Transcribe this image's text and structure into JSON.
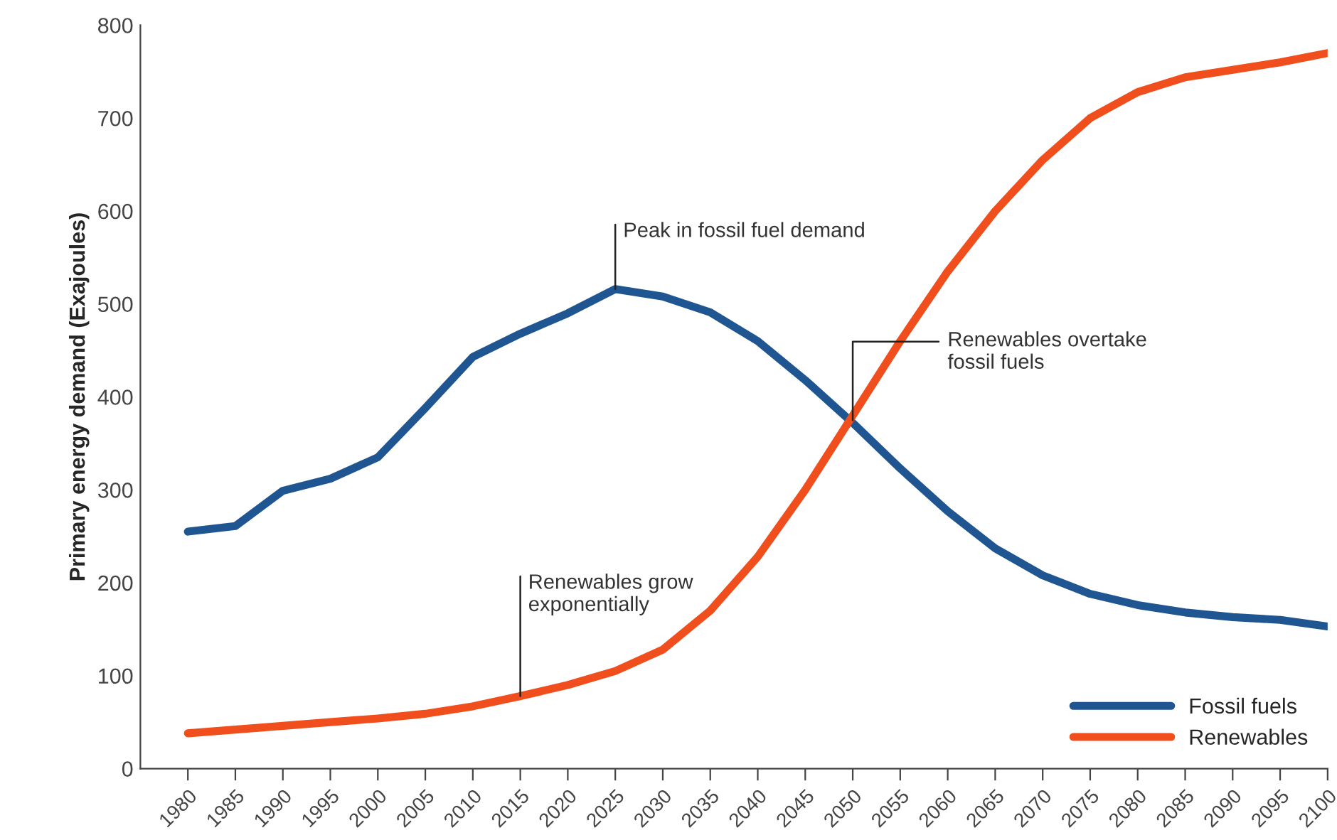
{
  "chart_data": {
    "type": "line",
    "ylabel": "Primary energy demand (Exajoules)",
    "x": [
      1980,
      1985,
      1990,
      1995,
      2000,
      2005,
      2010,
      2015,
      2020,
      2025,
      2030,
      2035,
      2040,
      2045,
      2050,
      2055,
      2060,
      2065,
      2070,
      2075,
      2080,
      2085,
      2090,
      2095,
      2100
    ],
    "series": [
      {
        "name": "Fossil fuels",
        "color": "#1f5591",
        "values": [
          255,
          261,
          299,
          312,
          335,
          388,
          443,
          468,
          490,
          516,
          508,
          491,
          460,
          418,
          372,
          323,
          277,
          237,
          208,
          188,
          176,
          168,
          163,
          160,
          153
        ]
      },
      {
        "name": "Renewables",
        "color": "#f04e1c",
        "values": [
          38,
          42,
          46,
          50,
          54,
          59,
          67,
          78,
          90,
          105,
          128,
          170,
          228,
          300,
          380,
          460,
          535,
          600,
          655,
          700,
          728,
          744,
          752,
          760,
          770
        ]
      }
    ],
    "xlim": [
      1975,
      2100
    ],
    "xticks": [
      1980,
      1985,
      1990,
      1995,
      2000,
      2005,
      2010,
      2015,
      2020,
      2025,
      2030,
      2035,
      2040,
      2045,
      2050,
      2055,
      2060,
      2065,
      2070,
      2075,
      2080,
      2085,
      2090,
      2095,
      2100
    ],
    "ylim": [
      0,
      800
    ],
    "yticks": [
      0,
      100,
      200,
      300,
      400,
      500,
      600,
      700,
      800
    ],
    "annotations": [
      {
        "text": "Peak in fossil fuel demand",
        "x": 2025,
        "y": 516
      },
      {
        "text": "Renewables overtake\nfossil fuels",
        "x": 2050,
        "y": 375
      },
      {
        "text": "Renewables grow\nexponentially",
        "x": 2015,
        "y": 78
      }
    ],
    "grid": false,
    "legend": "bottom right",
    "marker": "none",
    "line_style": "solid"
  }
}
